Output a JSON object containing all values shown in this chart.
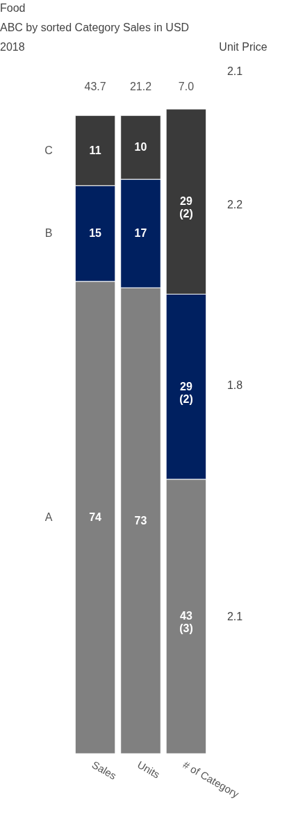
{
  "chart_data": {
    "type": "bar",
    "stacked": true,
    "title": "Food",
    "subtitle": "ABC by sorted Category Sales in USD",
    "categories": [
      "Sales",
      "Units",
      "# of Category"
    ],
    "series": [
      {
        "name": "A",
        "color": "#808080",
        "values": [
          74,
          73,
          43
        ],
        "value_labels": [
          "74",
          "73",
          "43\n(3)"
        ]
      },
      {
        "name": "B",
        "color": "#002060",
        "values": [
          15,
          17,
          29
        ],
        "value_labels": [
          "15",
          "17",
          "29\n(2)"
        ]
      },
      {
        "name": "C",
        "color": "#3a3a3a",
        "values": [
          11,
          10,
          29
        ],
        "value_labels": [
          "11",
          "10",
          "29\n(2)"
        ]
      }
    ],
    "annotations": [
      "2018",
      "Unit Price",
      "2.1",
      "2.2",
      "1.8",
      "2.1",
      "43.7",
      "21.2",
      "7.0"
    ],
    "legend": false
  }
}
